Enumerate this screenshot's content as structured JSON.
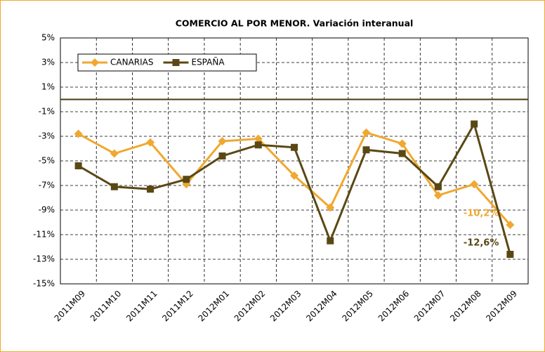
{
  "chart_data": {
    "type": "line",
    "title": "COMERCIO AL POR MENOR. Variación interanual",
    "categories": [
      "2011M09",
      "2011M10",
      "2011M11",
      "2011M12",
      "2012M01",
      "2012M02",
      "2012M03",
      "2012M04",
      "2012M05",
      "2012M06",
      "2012M07",
      "2012M08",
      "2012M09"
    ],
    "series": [
      {
        "name": "CANARIAS",
        "color": "#f0a830",
        "marker": "diamond",
        "values": [
          -2.8,
          -4.4,
          -3.5,
          -6.9,
          -3.4,
          -3.2,
          -6.2,
          -8.8,
          -2.7,
          -3.6,
          -7.8,
          -6.9,
          -10.2
        ],
        "value_labels": [
          null,
          null,
          null,
          null,
          null,
          null,
          null,
          null,
          null,
          null,
          null,
          null,
          "-10,2%"
        ]
      },
      {
        "name": "ESPAÑA",
        "color": "#5a4814",
        "marker": "square",
        "values": [
          -5.4,
          -7.1,
          -7.3,
          -6.5,
          -4.6,
          -3.7,
          -3.9,
          -11.5,
          -4.1,
          -4.4,
          -7.1,
          -2.0,
          -12.6
        ],
        "value_labels": [
          null,
          null,
          null,
          null,
          null,
          null,
          null,
          null,
          null,
          null,
          null,
          null,
          "-12,6%"
        ]
      }
    ],
    "ylim": [
      -15,
      5
    ],
    "yticks": [
      {
        "value": 5,
        "label": "5%"
      },
      {
        "value": 3,
        "label": "3%"
      },
      {
        "value": 1,
        "label": "1%"
      },
      {
        "value": -1,
        "label": "-1%"
      },
      {
        "value": -3,
        "label": "-3%"
      },
      {
        "value": -5,
        "label": "-5%"
      },
      {
        "value": -7,
        "label": "-7%"
      },
      {
        "value": -9,
        "label": "-9%"
      },
      {
        "value": -11,
        "label": "-11%"
      },
      {
        "value": -13,
        "label": "-13%"
      },
      {
        "value": -15,
        "label": "-15%"
      }
    ],
    "grid": true,
    "legend": "top-left"
  }
}
